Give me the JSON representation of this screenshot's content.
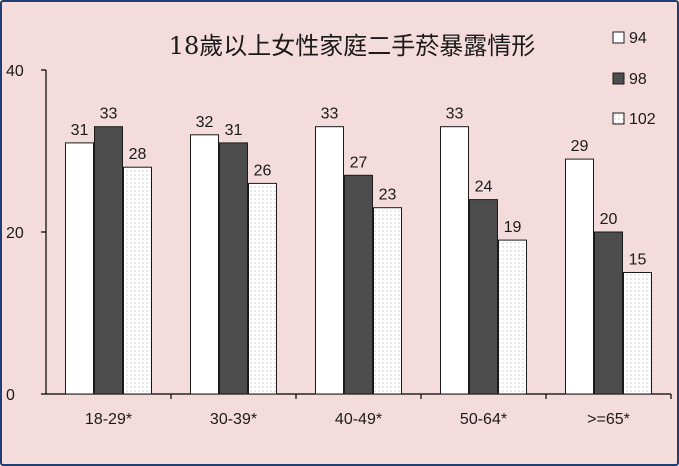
{
  "chart_data": {
    "type": "bar",
    "title": "18歲以上女性家庭二手菸暴露情形",
    "xlabel": "",
    "ylabel": "",
    "ylim": [
      0,
      40
    ],
    "yticks": [
      "0",
      "20",
      "40"
    ],
    "categories": [
      "18-29*",
      "30-39*",
      "40-49*",
      "50-64*",
      ">=65*"
    ],
    "series": [
      {
        "name": "94",
        "values": [
          31,
          32,
          33,
          33,
          29
        ],
        "fill": "#ffffff",
        "pattern": "none"
      },
      {
        "name": "98",
        "values": [
          33,
          31,
          27,
          24,
          20
        ],
        "fill": "#4d4d4d",
        "pattern": "none"
      },
      {
        "name": "102",
        "values": [
          28,
          26,
          23,
          19,
          15
        ],
        "fill": "#ffffff",
        "pattern": "dots"
      }
    ],
    "data_labels": [
      [
        "31",
        "32",
        "33",
        "33",
        "29"
      ],
      [
        "33",
        "31",
        "27",
        "24",
        "20"
      ],
      [
        "28",
        "26",
        "23",
        "19",
        "15"
      ]
    ],
    "legend_position": "top-right",
    "grid": false,
    "colors": {
      "background": "#f4dcdc",
      "frame": "#1f3f73",
      "axis": "#000000"
    }
  }
}
